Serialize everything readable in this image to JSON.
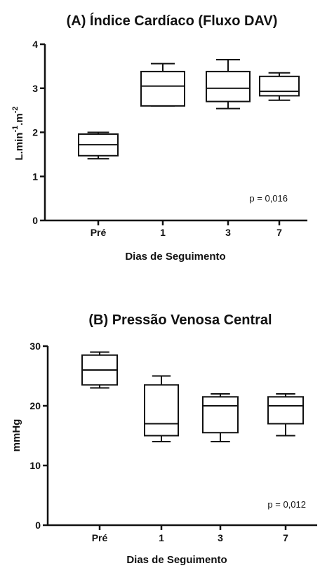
{
  "chart_data": [
    {
      "type": "boxplot",
      "title": "(A) Índice Cardíaco (Fluxo DAV)",
      "xlabel": "Dias de Seguimento",
      "ylabel_base": "L.min",
      "ylabel_sup1": "-1",
      "ylabel_mid": ".m",
      "ylabel_sup2": "-2",
      "ylim": [
        0,
        4
      ],
      "yticks": [
        "0",
        "1",
        "2",
        "3",
        "4"
      ],
      "categories": [
        "Pré",
        "1",
        "3",
        "7"
      ],
      "boxes": [
        {
          "min": 1.4,
          "q1": 1.47,
          "median": 1.72,
          "q3": 1.96,
          "max": 2.0
        },
        {
          "min": 2.6,
          "q1": 2.6,
          "median": 3.05,
          "q3": 3.38,
          "max": 3.56
        },
        {
          "min": 2.54,
          "q1": 2.7,
          "median": 3.0,
          "q3": 3.38,
          "max": 3.65
        },
        {
          "min": 2.73,
          "q1": 2.83,
          "median": 2.93,
          "q3": 3.27,
          "max": 3.35
        }
      ],
      "annotation": "p = 0,016"
    },
    {
      "type": "boxplot",
      "title": "(B) Pressão Venosa Central",
      "xlabel": "Dias de Seguimento",
      "ylabel": "mmHg",
      "ylim": [
        0,
        30
      ],
      "yticks": [
        "0",
        "10",
        "20",
        "30"
      ],
      "categories": [
        "Pré",
        "1",
        "3",
        "7"
      ],
      "boxes": [
        {
          "min": 23,
          "q1": 23.5,
          "median": 26,
          "q3": 28.5,
          "max": 29
        },
        {
          "min": 14,
          "q1": 15,
          "median": 17,
          "q3": 23.5,
          "max": 25
        },
        {
          "min": 14,
          "q1": 15.5,
          "median": 20,
          "q3": 21.5,
          "max": 22
        },
        {
          "min": 15,
          "q1": 17,
          "median": 20,
          "q3": 21.5,
          "max": 22
        }
      ],
      "annotation": "p = 0,012"
    }
  ]
}
